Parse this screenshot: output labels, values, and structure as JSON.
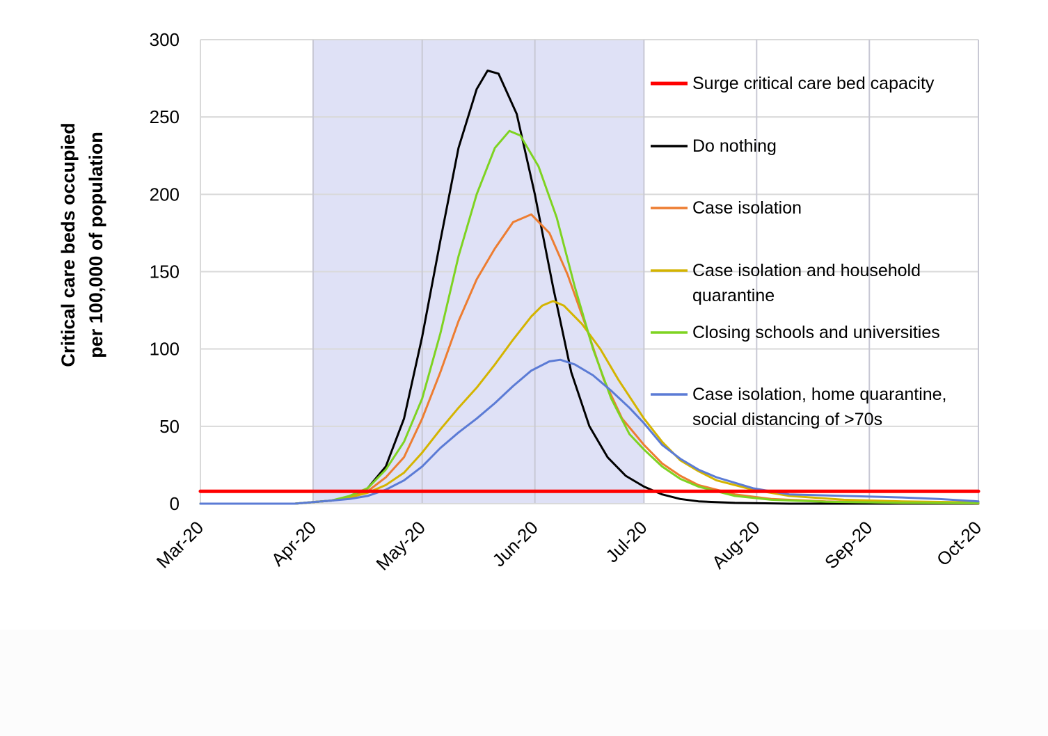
{
  "chart_data": {
    "type": "line",
    "title": "",
    "xlabel": "",
    "ylabel_lines": [
      "Critical care beds occupied",
      "per 100,000 of population"
    ],
    "x_ticks": [
      "Mar-20",
      "Apr-20",
      "May-20",
      "Jun-20",
      "Jul-20",
      "Aug-20",
      "Sep-20",
      "Oct-20"
    ],
    "y_ticks": [
      "0",
      "50",
      "100",
      "150",
      "200",
      "250",
      "300"
    ],
    "xlim": [
      "2020-03-01",
      "2020-10-01"
    ],
    "ylim": [
      0,
      300
    ],
    "grid": true,
    "legend_position": "right",
    "shaded_region": {
      "from": "2020-04-01",
      "to": "2020-07-01",
      "color": "#dfe1f6"
    },
    "series": [
      {
        "name": "Surge critical care bed capacity",
        "color": "#ff0000",
        "kind": "hline",
        "points": [
          [
            "2020-03-01",
            8
          ],
          [
            "2020-10-01",
            8
          ]
        ]
      },
      {
        "name": "Do nothing",
        "color": "#000000",
        "points": [
          [
            "2020-03-01",
            0
          ],
          [
            "2020-03-27",
            0
          ],
          [
            "2020-04-01",
            1
          ],
          [
            "2020-04-06",
            2
          ],
          [
            "2020-04-11",
            4
          ],
          [
            "2020-04-16",
            10
          ],
          [
            "2020-04-21",
            24
          ],
          [
            "2020-04-26",
            55
          ],
          [
            "2020-05-01",
            108
          ],
          [
            "2020-05-06",
            170
          ],
          [
            "2020-05-11",
            230
          ],
          [
            "2020-05-16",
            268
          ],
          [
            "2020-05-19",
            280
          ],
          [
            "2020-05-22",
            278
          ],
          [
            "2020-05-27",
            252
          ],
          [
            "2020-06-01",
            200
          ],
          [
            "2020-06-06",
            140
          ],
          [
            "2020-06-11",
            85
          ],
          [
            "2020-06-16",
            50
          ],
          [
            "2020-06-21",
            30
          ],
          [
            "2020-06-26",
            18
          ],
          [
            "2020-07-01",
            11
          ],
          [
            "2020-07-06",
            6
          ],
          [
            "2020-07-11",
            3
          ],
          [
            "2020-07-16",
            1.5
          ],
          [
            "2020-07-26",
            0.5
          ],
          [
            "2020-08-10",
            0
          ],
          [
            "2020-10-01",
            0
          ]
        ]
      },
      {
        "name": "Case isolation",
        "color": "#ed7d31",
        "points": [
          [
            "2020-03-01",
            0
          ],
          [
            "2020-03-27",
            0
          ],
          [
            "2020-04-01",
            1
          ],
          [
            "2020-04-06",
            2
          ],
          [
            "2020-04-11",
            4
          ],
          [
            "2020-04-16",
            8
          ],
          [
            "2020-04-21",
            17
          ],
          [
            "2020-04-26",
            30
          ],
          [
            "2020-05-01",
            55
          ],
          [
            "2020-05-06",
            85
          ],
          [
            "2020-05-11",
            118
          ],
          [
            "2020-05-16",
            145
          ],
          [
            "2020-05-21",
            165
          ],
          [
            "2020-05-26",
            182
          ],
          [
            "2020-05-31",
            187
          ],
          [
            "2020-06-05",
            175
          ],
          [
            "2020-06-10",
            148
          ],
          [
            "2020-06-15",
            115
          ],
          [
            "2020-06-20",
            80
          ],
          [
            "2020-06-25",
            55
          ],
          [
            "2020-07-01",
            38
          ],
          [
            "2020-07-06",
            26
          ],
          [
            "2020-07-11",
            18
          ],
          [
            "2020-07-16",
            12
          ],
          [
            "2020-07-26",
            6
          ],
          [
            "2020-08-05",
            3
          ],
          [
            "2020-08-20",
            1.5
          ],
          [
            "2020-09-10",
            0.5
          ],
          [
            "2020-10-01",
            0.2
          ]
        ]
      },
      {
        "name": "Case isolation and household quarantine",
        "color": "#d4b400",
        "points": [
          [
            "2020-03-01",
            0
          ],
          [
            "2020-03-27",
            0
          ],
          [
            "2020-04-01",
            1
          ],
          [
            "2020-04-06",
            2
          ],
          [
            "2020-04-11",
            4
          ],
          [
            "2020-04-16",
            7
          ],
          [
            "2020-04-21",
            12
          ],
          [
            "2020-04-26",
            20
          ],
          [
            "2020-05-01",
            33
          ],
          [
            "2020-05-06",
            48
          ],
          [
            "2020-05-11",
            62
          ],
          [
            "2020-05-16",
            75
          ],
          [
            "2020-05-21",
            90
          ],
          [
            "2020-05-26",
            106
          ],
          [
            "2020-05-31",
            121
          ],
          [
            "2020-06-03",
            128
          ],
          [
            "2020-06-06",
            131
          ],
          [
            "2020-06-09",
            128
          ],
          [
            "2020-06-14",
            116
          ],
          [
            "2020-06-19",
            100
          ],
          [
            "2020-06-24",
            80
          ],
          [
            "2020-07-01",
            55
          ],
          [
            "2020-07-06",
            40
          ],
          [
            "2020-07-11",
            28
          ],
          [
            "2020-07-16",
            21
          ],
          [
            "2020-07-21",
            15
          ],
          [
            "2020-07-31",
            9
          ],
          [
            "2020-08-10",
            5
          ],
          [
            "2020-08-25",
            2.5
          ],
          [
            "2020-09-10",
            1.5
          ],
          [
            "2020-10-01",
            0.8
          ]
        ]
      },
      {
        "name": "Closing schools and universities",
        "color": "#7ed321",
        "points": [
          [
            "2020-03-01",
            0
          ],
          [
            "2020-03-27",
            0
          ],
          [
            "2020-04-01",
            1
          ],
          [
            "2020-04-06",
            2
          ],
          [
            "2020-04-11",
            5
          ],
          [
            "2020-04-16",
            10
          ],
          [
            "2020-04-21",
            22
          ],
          [
            "2020-04-26",
            40
          ],
          [
            "2020-05-01",
            68
          ],
          [
            "2020-05-06",
            110
          ],
          [
            "2020-05-11",
            160
          ],
          [
            "2020-05-16",
            200
          ],
          [
            "2020-05-21",
            230
          ],
          [
            "2020-05-25",
            241
          ],
          [
            "2020-05-28",
            238
          ],
          [
            "2020-06-02",
            218
          ],
          [
            "2020-06-07",
            185
          ],
          [
            "2020-06-12",
            140
          ],
          [
            "2020-06-17",
            100
          ],
          [
            "2020-06-22",
            68
          ],
          [
            "2020-06-27",
            45
          ],
          [
            "2020-07-01",
            35
          ],
          [
            "2020-07-06",
            24
          ],
          [
            "2020-07-11",
            16
          ],
          [
            "2020-07-16",
            11
          ],
          [
            "2020-07-26",
            5
          ],
          [
            "2020-08-05",
            2.5
          ],
          [
            "2020-08-20",
            1.2
          ],
          [
            "2020-09-10",
            0.6
          ],
          [
            "2020-10-01",
            0.3
          ]
        ]
      },
      {
        "name": "Case isolation, home quarantine, social distancing of >70s",
        "color": "#5b7bd5",
        "points": [
          [
            "2020-03-01",
            0
          ],
          [
            "2020-03-27",
            0
          ],
          [
            "2020-04-01",
            1
          ],
          [
            "2020-04-06",
            2
          ],
          [
            "2020-04-11",
            3
          ],
          [
            "2020-04-16",
            5
          ],
          [
            "2020-04-21",
            9
          ],
          [
            "2020-04-26",
            15
          ],
          [
            "2020-05-01",
            24
          ],
          [
            "2020-05-06",
            36
          ],
          [
            "2020-05-11",
            46
          ],
          [
            "2020-05-16",
            55
          ],
          [
            "2020-05-21",
            65
          ],
          [
            "2020-05-26",
            76
          ],
          [
            "2020-05-31",
            86
          ],
          [
            "2020-06-05",
            92
          ],
          [
            "2020-06-08",
            93
          ],
          [
            "2020-06-12",
            90
          ],
          [
            "2020-06-17",
            83
          ],
          [
            "2020-06-22",
            73
          ],
          [
            "2020-06-27",
            62
          ],
          [
            "2020-07-01",
            52
          ],
          [
            "2020-07-06",
            38
          ],
          [
            "2020-07-11",
            29
          ],
          [
            "2020-07-16",
            22
          ],
          [
            "2020-07-21",
            17
          ],
          [
            "2020-07-31",
            10
          ],
          [
            "2020-08-10",
            6
          ],
          [
            "2020-08-25",
            5
          ],
          [
            "2020-09-10",
            4
          ],
          [
            "2020-09-20",
            3
          ],
          [
            "2020-10-01",
            1.5
          ]
        ]
      }
    ]
  },
  "legend": [
    {
      "label_lines": [
        "Surge critical care bed capacity"
      ],
      "color": "#ff0000"
    },
    {
      "label_lines": [
        "Do nothing"
      ],
      "color": "#000000"
    },
    {
      "label_lines": [
        "Case isolation"
      ],
      "color": "#ed7d31"
    },
    {
      "label_lines": [
        "Case isolation and household",
        "quarantine"
      ],
      "color": "#d4b400"
    },
    {
      "label_lines": [
        "Closing schools and universities"
      ],
      "color": "#7ed321"
    },
    {
      "label_lines": [
        "Case isolation, home quarantine,",
        "social distancing of >70s"
      ],
      "color": "#5b7bd5"
    }
  ]
}
